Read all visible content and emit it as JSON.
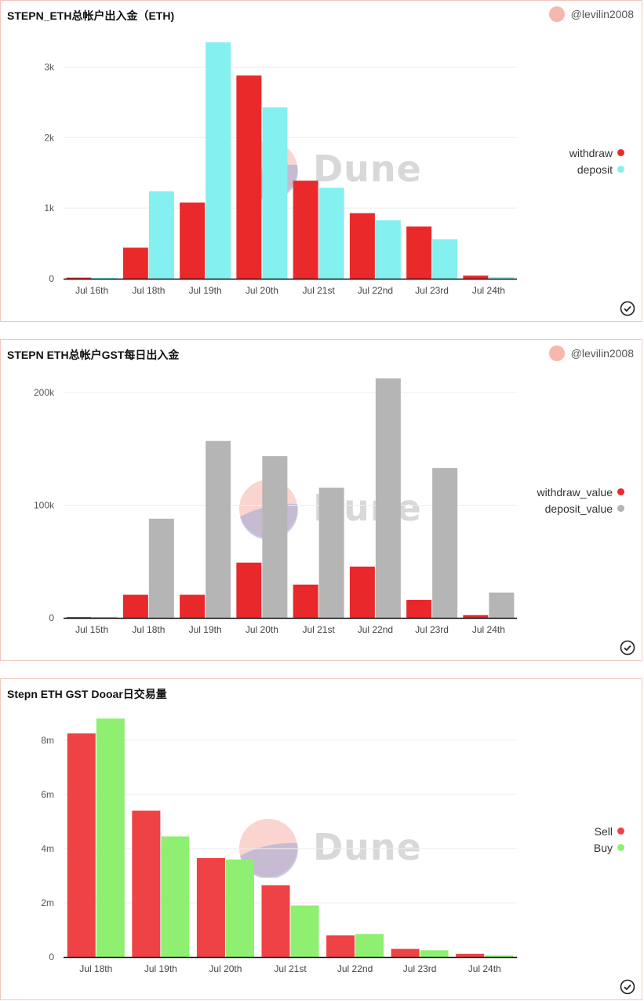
{
  "watermark_text": "Dune",
  "panels": [
    {
      "title": "STEPN_ETH总帐户出入金（ETH)",
      "author": "@levilin2008",
      "chart_data": {
        "type": "bar",
        "title": "STEPN_ETH总帐户出入金（ETH)",
        "categories": [
          "Jul 16th",
          "Jul 18th",
          "Jul 19th",
          "Jul 20th",
          "Jul 21st",
          "Jul 22nd",
          "Jul 23rd",
          "Jul 24th"
        ],
        "yticks": [
          0,
          1000,
          2000,
          3000
        ],
        "ytick_labels": [
          "0",
          "1k",
          "2k",
          "3k"
        ],
        "ylim": [
          0,
          3450
        ],
        "legend_position": "right",
        "grid": true,
        "series": [
          {
            "name": "withdraw",
            "color": "#ea2a2a",
            "values": [
              15,
              440,
              1080,
              2880,
              1390,
              930,
              740,
              45
            ]
          },
          {
            "name": "deposit",
            "color": "#84f0ef",
            "values": [
              10,
              1240,
              3350,
              2430,
              1290,
              830,
              560,
              20
            ]
          }
        ]
      }
    },
    {
      "title": "STEPN ETH总帐户GST每日出入金",
      "author": "@levilin2008",
      "chart_data": {
        "type": "bar",
        "title": "STEPN ETH总帐户GST每日出入金",
        "categories": [
          "Jul 15th",
          "Jul 18th",
          "Jul 19th",
          "Jul 20th",
          "Jul 21st",
          "Jul 22nd",
          "Jul 23rd",
          "Jul 24th"
        ],
        "yticks": [
          0,
          100000,
          200000
        ],
        "ytick_labels": [
          "0",
          "100k",
          "200k"
        ],
        "ylim": [
          0,
          216000
        ],
        "legend_position": "right",
        "grid": true,
        "series": [
          {
            "name": "withdraw_value",
            "color": "#e8282b",
            "values": [
              300,
              20500,
              20500,
              49000,
              29500,
              45500,
              16000,
              2500
            ]
          },
          {
            "name": "deposit_value",
            "color": "#b5b5b5",
            "values": [
              200,
              88000,
              157000,
              143500,
              115500,
              212500,
              133000,
              22500
            ]
          }
        ]
      }
    },
    {
      "title": "Stepn ETH GST Dooar日交易量",
      "author": "",
      "chart_data": {
        "type": "bar",
        "title": "Stepn ETH GST Dooar日交易量",
        "categories": [
          "Jul 18th",
          "Jul 19th",
          "Jul 20th",
          "Jul 21st",
          "Jul 22nd",
          "Jul 23rd",
          "Jul 24th"
        ],
        "yticks": [
          0,
          2000000,
          4000000,
          6000000,
          8000000
        ],
        "ytick_labels": [
          "0",
          "2m",
          "4m",
          "6m",
          "8m"
        ],
        "ylim": [
          0,
          8980000
        ],
        "legend_position": "right",
        "grid": true,
        "series": [
          {
            "name": "Sell",
            "color": "#ee4244",
            "values": [
              8250000,
              5400000,
              3650000,
              2650000,
              800000,
              300000,
              120000
            ]
          },
          {
            "name": "Buy",
            "color": "#8eef70",
            "values": [
              8800000,
              4450000,
              3600000,
              1900000,
              850000,
              250000,
              60000
            ]
          }
        ]
      }
    }
  ]
}
